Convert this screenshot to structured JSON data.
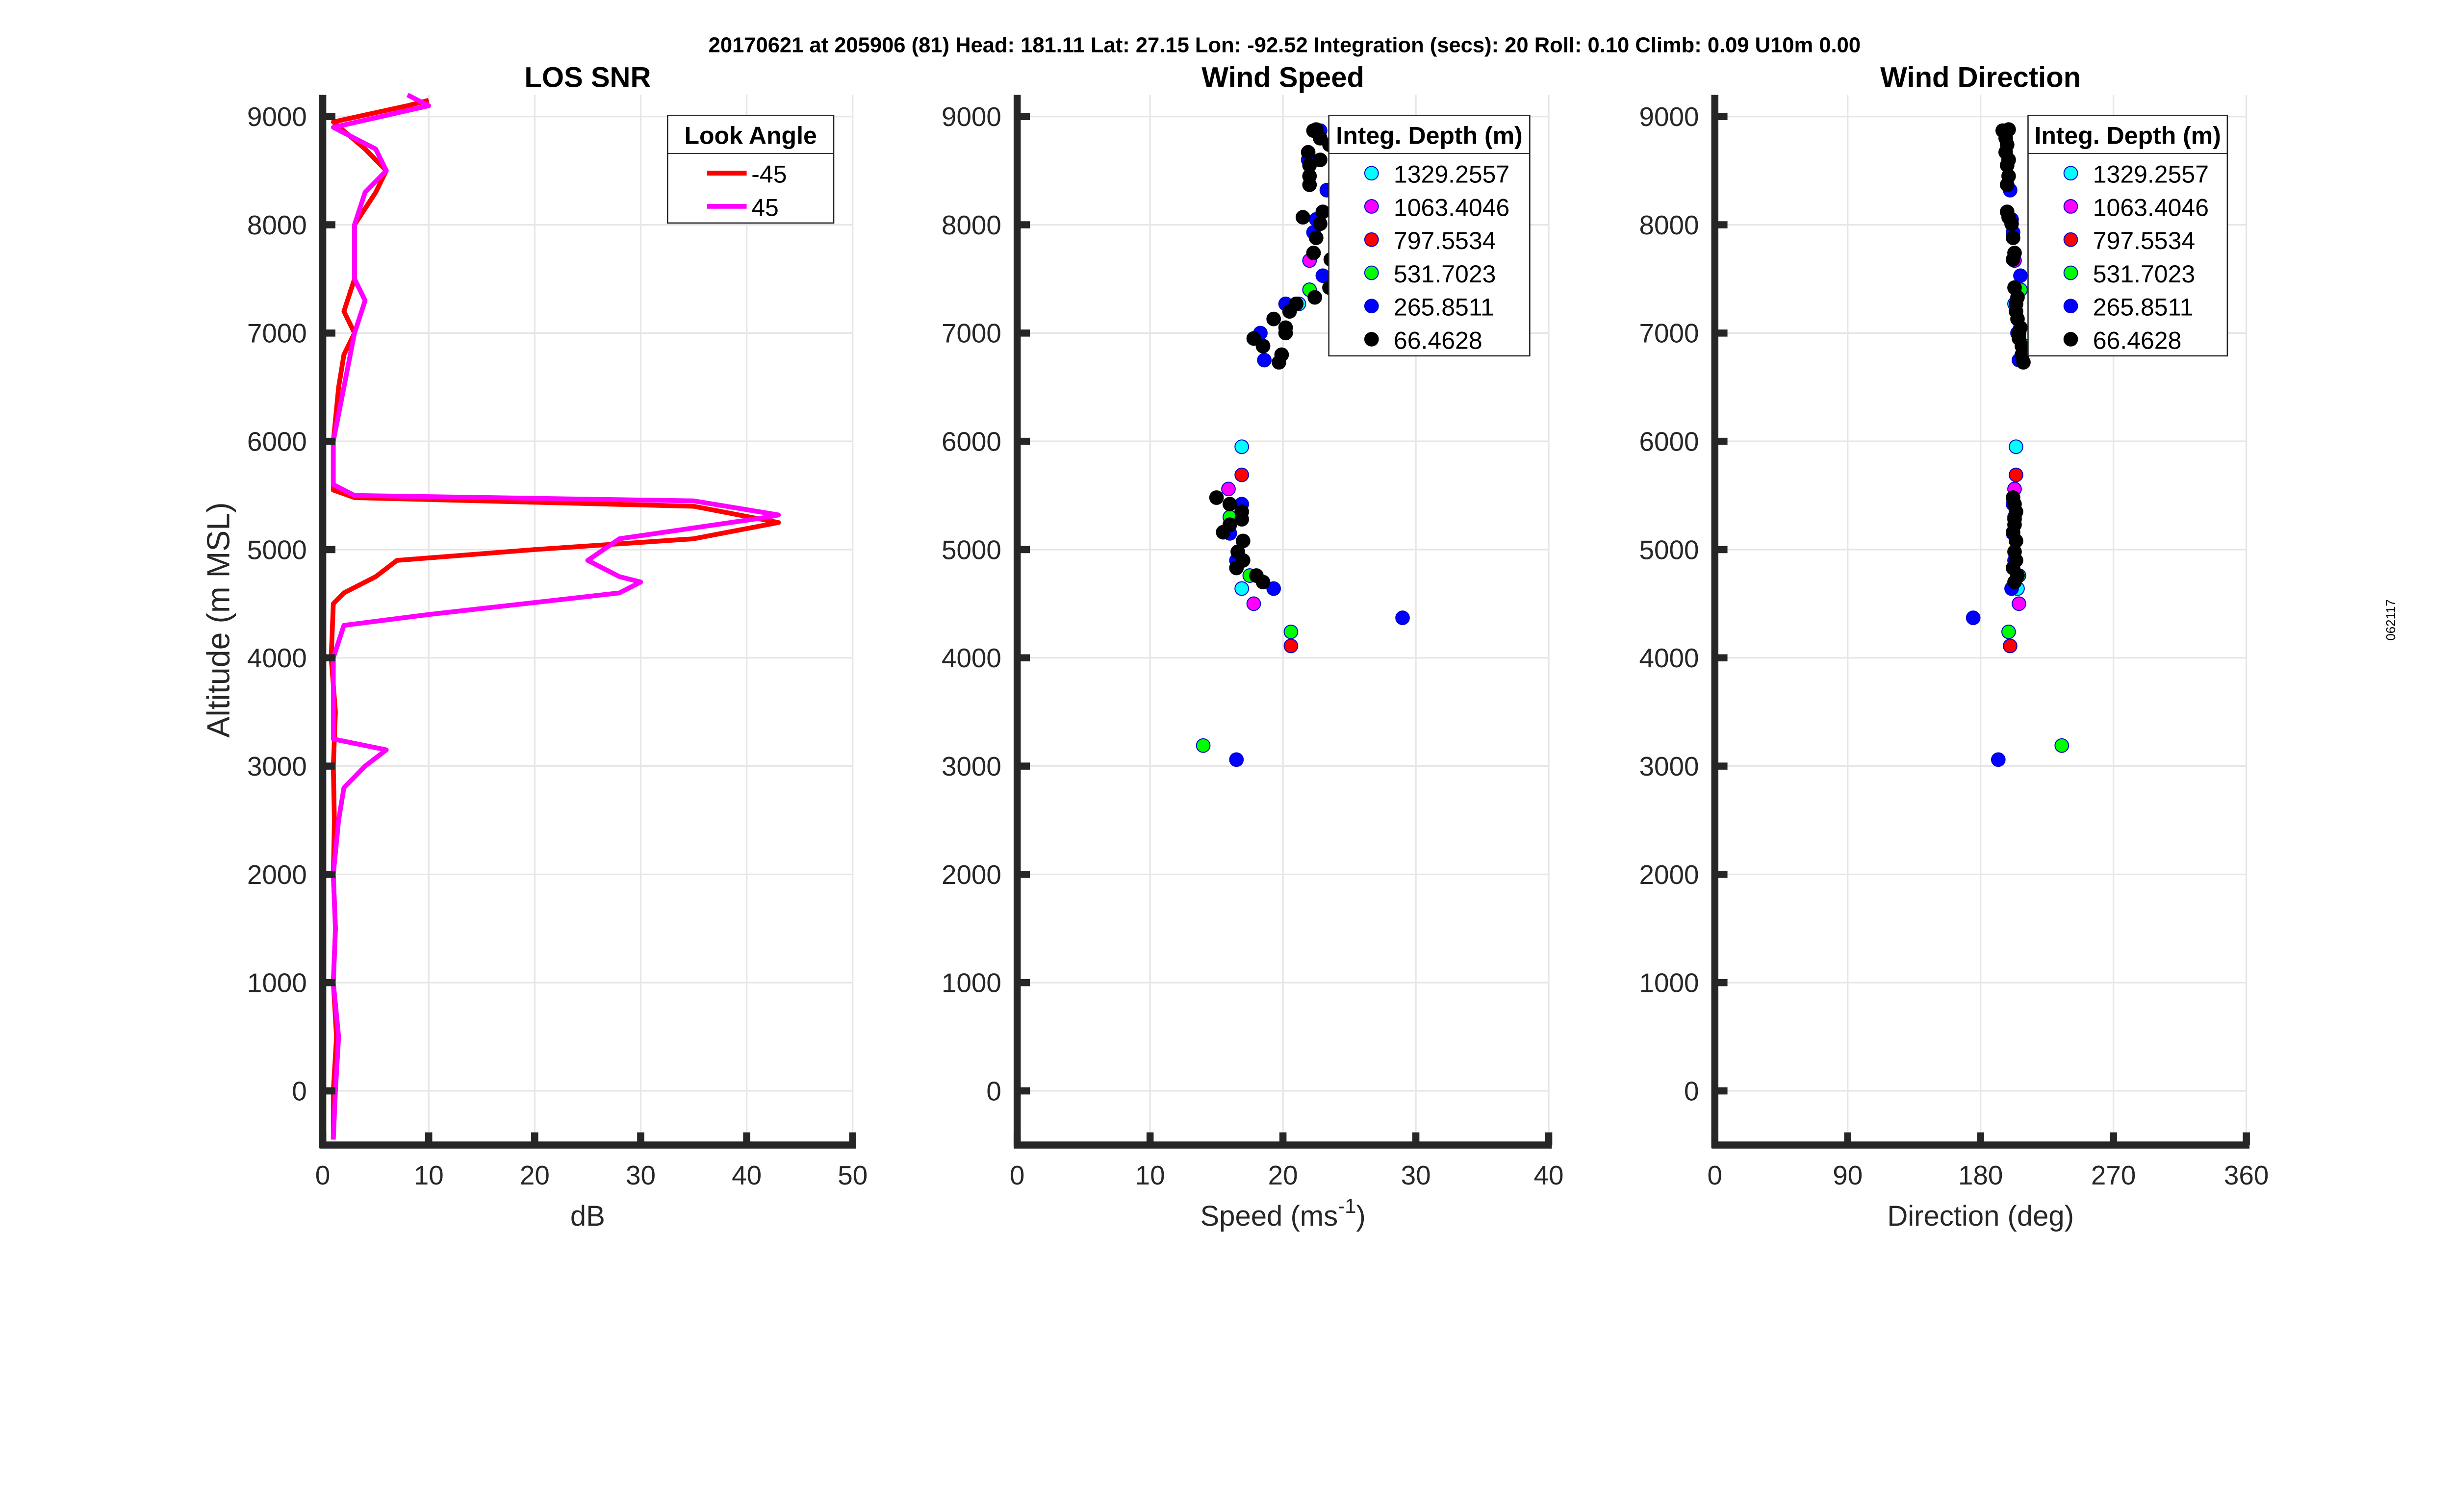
{
  "header": {
    "title": "20170621 at 205906 (81)  Head: 181.11  Lat: 27.15  Lon: -92.52  Integration (secs): 20  Roll: 0.10  Climb: 0.09  U10m 0.00",
    "side_label": "062117"
  },
  "colors": {
    "red": "#ff0000",
    "magenta": "#ff00ff",
    "cyan": "#00ffff",
    "green": "#00ff00",
    "blue": "#0000ff",
    "black": "#000000",
    "axis": "#262626",
    "grid": "#e6e6e6"
  },
  "chart_data": [
    {
      "type": "line",
      "title": "LOS SNR",
      "xlabel": "dB",
      "ylabel": "Altitude (m MSL)",
      "xlim": [
        0,
        50
      ],
      "ylim": [
        -500,
        9200
      ],
      "xticks": [
        "0",
        "10",
        "20",
        "30",
        "40",
        "50"
      ],
      "yticks": [
        "0",
        "1000",
        "2000",
        "3000",
        "4000",
        "5000",
        "6000",
        "7000",
        "8000",
        "9000"
      ],
      "grid": true,
      "legend_title": "Look Angle",
      "legend_position": "top-right",
      "series": [
        {
          "name": "-45",
          "color": "#ff0000",
          "points": [
            [
              1,
              -450
            ],
            [
              1,
              0
            ],
            [
              1.3,
              500
            ],
            [
              1,
              1000
            ],
            [
              1.2,
              1500
            ],
            [
              1,
              2000
            ],
            [
              1.1,
              2500
            ],
            [
              1,
              3000
            ],
            [
              1.2,
              3500
            ],
            [
              0.8,
              4000
            ],
            [
              1,
              4500
            ],
            [
              2,
              4600
            ],
            [
              5,
              4750
            ],
            [
              7,
              4900
            ],
            [
              20,
              5000
            ],
            [
              35,
              5100
            ],
            [
              43,
              5250
            ],
            [
              35,
              5400
            ],
            [
              3,
              5480
            ],
            [
              1,
              5550
            ],
            [
              1,
              6000
            ],
            [
              1.5,
              6500
            ],
            [
              2,
              6800
            ],
            [
              3,
              7000
            ],
            [
              2,
              7200
            ],
            [
              3,
              7500
            ],
            [
              3,
              7800
            ],
            [
              3,
              8000
            ],
            [
              5,
              8300
            ],
            [
              6,
              8500
            ],
            [
              4,
              8700
            ],
            [
              1,
              8950
            ],
            [
              8,
              9100
            ],
            [
              10,
              9150
            ]
          ]
        },
        {
          "name": "45",
          "color": "#ff00ff",
          "points": [
            [
              1,
              -450
            ],
            [
              1.2,
              0
            ],
            [
              1.5,
              500
            ],
            [
              1,
              1000
            ],
            [
              1.2,
              1500
            ],
            [
              1,
              2000
            ],
            [
              1.5,
              2500
            ],
            [
              2,
              2800
            ],
            [
              4,
              3000
            ],
            [
              6,
              3150
            ],
            [
              1,
              3250
            ],
            [
              1,
              3500
            ],
            [
              1,
              4000
            ],
            [
              2,
              4300
            ],
            [
              10,
              4400
            ],
            [
              28,
              4600
            ],
            [
              30,
              4700
            ],
            [
              28,
              4750
            ],
            [
              25,
              4900
            ],
            [
              28,
              5100
            ],
            [
              35,
              5200
            ],
            [
              42,
              5300
            ],
            [
              43,
              5320
            ],
            [
              35,
              5450
            ],
            [
              3,
              5500
            ],
            [
              1,
              5600
            ],
            [
              1,
              6000
            ],
            [
              2,
              6500
            ],
            [
              3,
              7000
            ],
            [
              4,
              7300
            ],
            [
              3,
              7500
            ],
            [
              3,
              8000
            ],
            [
              4,
              8300
            ],
            [
              6,
              8500
            ],
            [
              5,
              8700
            ],
            [
              1,
              8900
            ],
            [
              10,
              9100
            ],
            [
              8,
              9200
            ]
          ]
        }
      ]
    },
    {
      "type": "scatter",
      "title": "Wind Speed",
      "xlabel": "Speed (ms",
      "xlabel_sup": "-1",
      "xlabel_end": ")",
      "xlim": [
        0,
        40
      ],
      "ylim": [
        -500,
        9200
      ],
      "xticks": [
        "0",
        "10",
        "20",
        "30",
        "40"
      ],
      "yticks": [
        "0",
        "1000",
        "2000",
        "3000",
        "4000",
        "5000",
        "6000",
        "7000",
        "8000",
        "9000"
      ],
      "grid": true,
      "legend_title": "Integ. Depth (m)",
      "legend_position": "top-right",
      "series": [
        {
          "name": "1329.2557",
          "color": "#00ffff",
          "points": [
            [
              16.9,
              5950
            ],
            [
              16.9,
              4640
            ],
            [
              21.2,
              7270
            ]
          ]
        },
        {
          "name": "1063.4046",
          "color": "#ff00ff",
          "points": [
            [
              15.9,
              5560
            ],
            [
              17.8,
              4500
            ],
            [
              22,
              7670
            ]
          ]
        },
        {
          "name": "797.5534",
          "color": "#ff0000",
          "points": [
            [
              16.9,
              5690
            ],
            [
              20.6,
              4110
            ]
          ]
        },
        {
          "name": "531.7023",
          "color": "#00ff00",
          "points": [
            [
              16,
              5300
            ],
            [
              17.5,
              4760
            ],
            [
              20.6,
              4240
            ],
            [
              14,
              3190
            ],
            [
              22,
              7400
            ],
            [
              18.5,
              6880
            ]
          ]
        },
        {
          "name": "265.8511",
          "color": "#0000ff",
          "points": [
            [
              16.9,
              5420
            ],
            [
              16,
              5150
            ],
            [
              16.5,
              4900
            ],
            [
              19.3,
              4640
            ],
            [
              29,
              4370
            ],
            [
              16.5,
              3060
            ],
            [
              18.3,
              7000
            ],
            [
              18.6,
              6750
            ],
            [
              20.2,
              7270
            ],
            [
              23,
              7530
            ],
            [
              23.3,
              8320
            ],
            [
              22.8,
              8870
            ],
            [
              22.5,
              8050
            ],
            [
              22.3,
              7930
            ],
            [
              21.9,
              8600
            ]
          ]
        },
        {
          "name": "66.4628",
          "color": "#000000",
          "points": [
            [
              15,
              5480
            ],
            [
              16,
              5420
            ],
            [
              16.9,
              5350
            ],
            [
              16.9,
              5280
            ],
            [
              15.5,
              5160
            ],
            [
              16,
              5230
            ],
            [
              17,
              5080
            ],
            [
              16.6,
              4980
            ],
            [
              16.5,
              4830
            ],
            [
              17,
              4900
            ],
            [
              18,
              4760
            ],
            [
              18.5,
              4700
            ],
            [
              17.8,
              6950
            ],
            [
              18.5,
              6880
            ],
            [
              19.7,
              6730
            ],
            [
              19.9,
              6800
            ],
            [
              20.2,
              7050
            ],
            [
              20.2,
              7000
            ],
            [
              19.3,
              7130
            ],
            [
              20.5,
              7200
            ],
            [
              21,
              7270
            ],
            [
              22.4,
              7330
            ],
            [
              23.5,
              7420
            ],
            [
              23.6,
              7680
            ],
            [
              22.3,
              7740
            ],
            [
              22.5,
              7880
            ],
            [
              22.8,
              8010
            ],
            [
              21.5,
              8070
            ],
            [
              23,
              8120
            ],
            [
              22,
              8370
            ],
            [
              22,
              8450
            ],
            [
              22,
              8550
            ],
            [
              22.8,
              8600
            ],
            [
              21.9,
              8670
            ],
            [
              23.5,
              8740
            ],
            [
              22.8,
              8800
            ],
            [
              22.3,
              8870
            ],
            [
              22.5,
              8880
            ]
          ]
        }
      ]
    },
    {
      "type": "scatter",
      "title": "Wind Direction",
      "xlabel": "Direction (deg)",
      "xlim": [
        0,
        360
      ],
      "ylim": [
        -500,
        9200
      ],
      "xticks": [
        "0",
        "90",
        "180",
        "270",
        "360"
      ],
      "yticks": [
        "0",
        "1000",
        "2000",
        "3000",
        "4000",
        "5000",
        "6000",
        "7000",
        "8000",
        "9000"
      ],
      "grid": true,
      "legend_title": "Integ. Depth (m)",
      "legend_position": "top-right",
      "series": [
        {
          "name": "1329.2557",
          "color": "#00ffff",
          "points": [
            [
              204,
              5950
            ],
            [
              205,
              4640
            ],
            [
              203,
              7270
            ]
          ]
        },
        {
          "name": "1063.4046",
          "color": "#ff00ff",
          "points": [
            [
              203,
              5560
            ],
            [
              206,
              4500
            ],
            [
              203,
              7670
            ]
          ]
        },
        {
          "name": "797.5534",
          "color": "#ff0000",
          "points": [
            [
              204,
              5690
            ],
            [
              200,
              4110
            ]
          ]
        },
        {
          "name": "531.7023",
          "color": "#00ff00",
          "points": [
            [
              203,
              5300
            ],
            [
              206,
              4760
            ],
            [
              199,
              4240
            ],
            [
              235,
              3190
            ],
            [
              207,
              7400
            ],
            [
              210,
              6880
            ]
          ]
        },
        {
          "name": "265.8511",
          "color": "#0000ff",
          "points": [
            [
              202,
              5420
            ],
            [
              202,
              5150
            ],
            [
              203,
              4900
            ],
            [
              201,
              4640
            ],
            [
              175,
              4370
            ],
            [
              192,
              3060
            ],
            [
              205,
              7000
            ],
            [
              206,
              6750
            ],
            [
              204,
              7270
            ],
            [
              207,
              7530
            ],
            [
              200,
              8320
            ],
            [
              198,
              8870
            ],
            [
              201,
              8050
            ],
            [
              202,
              7930
            ],
            [
              199,
              8600
            ]
          ]
        },
        {
          "name": "66.4628",
          "color": "#000000",
          "points": [
            [
              202,
              5480
            ],
            [
              203,
              5420
            ],
            [
              204,
              5350
            ],
            [
              203,
              5280
            ],
            [
              202,
              5160
            ],
            [
              203,
              5230
            ],
            [
              204,
              5080
            ],
            [
              203,
              4980
            ],
            [
              202,
              4830
            ],
            [
              204,
              4900
            ],
            [
              205,
              4760
            ],
            [
              203,
              4700
            ],
            [
              206,
              6950
            ],
            [
              208,
              6880
            ],
            [
              209,
              6730
            ],
            [
              208,
              6800
            ],
            [
              207,
              7050
            ],
            [
              206,
              7000
            ],
            [
              205,
              7130
            ],
            [
              204,
              7200
            ],
            [
              204,
              7270
            ],
            [
              205,
              7330
            ],
            [
              203,
              7420
            ],
            [
              202,
              7680
            ],
            [
              203,
              7740
            ],
            [
              202,
              7880
            ],
            [
              201,
              8010
            ],
            [
              199,
              8070
            ],
            [
              198,
              8120
            ],
            [
              198,
              8370
            ],
            [
              199,
              8450
            ],
            [
              198,
              8550
            ],
            [
              199,
              8600
            ],
            [
              197,
              8670
            ],
            [
              198,
              8740
            ],
            [
              197,
              8800
            ],
            [
              195,
              8870
            ],
            [
              199,
              8880
            ]
          ]
        }
      ]
    }
  ]
}
